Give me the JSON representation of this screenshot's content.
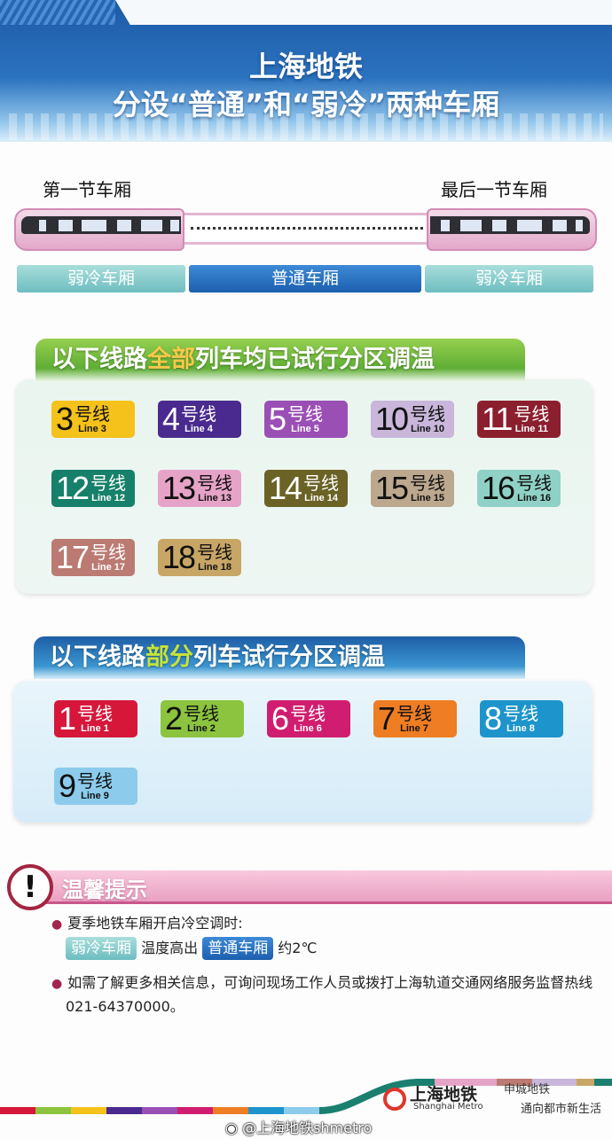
{
  "header": {
    "title": "上海地铁",
    "subtitle": "分设“普通”和“弱冷”两种车厢"
  },
  "train": {
    "first_car": "第一节车厢",
    "last_car": "最后一节车厢",
    "left_tag": "弱冷车厢",
    "middle_tag": "普通车厢",
    "right_tag": "弱冷车厢"
  },
  "section_all": {
    "title_pre": "以下线路",
    "title_em": "全部",
    "title_post": "列车均已试行分区调温",
    "lines": [
      {
        "num": "3",
        "cn": "号线",
        "en": "Line 3",
        "color": "#f4c21a",
        "text": "#111"
      },
      {
        "num": "4",
        "cn": "号线",
        "en": "Line 4",
        "color": "#4a2a8e",
        "text": "#fff"
      },
      {
        "num": "5",
        "cn": "号线",
        "en": "Line 5",
        "color": "#9a4fb5",
        "text": "#fff"
      },
      {
        "num": "10",
        "cn": "号线",
        "en": "Line 10",
        "color": "#c9b6da",
        "text": "#111"
      },
      {
        "num": "11",
        "cn": "号线",
        "en": "Line 11",
        "color": "#8c1f2e",
        "text": "#fff"
      },
      {
        "num": "12",
        "cn": "号线",
        "en": "Line 12",
        "color": "#17806a",
        "text": "#fff"
      },
      {
        "num": "13",
        "cn": "号线",
        "en": "Line 13",
        "color": "#e6a3c8",
        "text": "#111"
      },
      {
        "num": "14",
        "cn": "号线",
        "en": "Line 14",
        "color": "#6b6226",
        "text": "#fff"
      },
      {
        "num": "15",
        "cn": "号线",
        "en": "Line 15",
        "color": "#bca88e",
        "text": "#111"
      },
      {
        "num": "16",
        "cn": "号线",
        "en": "Line 16",
        "color": "#8fd1c6",
        "text": "#111"
      },
      {
        "num": "17",
        "cn": "号线",
        "en": "Line 17",
        "color": "#bb7a72",
        "text": "#fff"
      },
      {
        "num": "18",
        "cn": "号线",
        "en": "Line 18",
        "color": "#c8a666",
        "text": "#111"
      }
    ]
  },
  "section_part": {
    "title_pre": "以下线路",
    "title_em": "部分",
    "title_post": "列车试行分区调温",
    "lines": [
      {
        "num": "1",
        "cn": "号线",
        "en": "Line 1",
        "color": "#d6173a",
        "text": "#fff"
      },
      {
        "num": "2",
        "cn": "号线",
        "en": "Line 2",
        "color": "#8cc43f",
        "text": "#111"
      },
      {
        "num": "6",
        "cn": "号线",
        "en": "Line 6",
        "color": "#d11d6f",
        "text": "#fff"
      },
      {
        "num": "7",
        "cn": "号线",
        "en": "Line 7",
        "color": "#ee7d23",
        "text": "#111"
      },
      {
        "num": "8",
        "cn": "号线",
        "en": "Line 8",
        "color": "#1d94cc",
        "text": "#fff"
      },
      {
        "num": "9",
        "cn": "号线",
        "en": "Line 9",
        "color": "#8ccbec",
        "text": "#111"
      }
    ]
  },
  "tips": {
    "title": "温馨提示",
    "b1": "夏季地铁车厢开启冷空调时:",
    "tag_soft": "弱冷车厢",
    "mid": "温度高出",
    "tag_norm": "普通车厢",
    "tail": "约2℃",
    "b2": "如需了解更多相关信息，可询问现场工作人员或拨打上海轨道交通网络服务监督热线021-64370000。"
  },
  "footer": {
    "logo_cn": "上海地铁",
    "logo_en": "Shanghai Metro",
    "slogan1": "申城地铁",
    "slogan2": "通向都市新生活",
    "watermark": "@上海地铁shmetro"
  },
  "colors": {
    "header_blue": "#1d5aa6",
    "green_bar": "#7cc242",
    "blue_bar": "#1f6fb8",
    "tip_pink": "#eaa1c2"
  }
}
